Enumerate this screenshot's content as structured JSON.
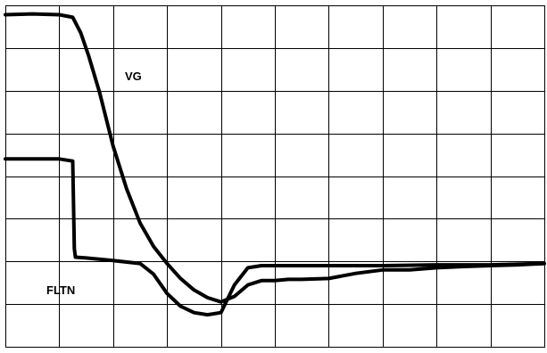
{
  "chart_data": {
    "type": "line",
    "grid": true,
    "divisions": {
      "x": 10,
      "y": 8
    },
    "xlim": [
      0,
      10
    ],
    "ylim": [
      0,
      8
    ],
    "series": [
      {
        "name": "VG",
        "points": [
          [
            0.0,
            7.78
          ],
          [
            0.5,
            7.8
          ],
          [
            1.0,
            7.78
          ],
          [
            1.25,
            7.72
          ],
          [
            1.4,
            7.35
          ],
          [
            1.55,
            6.8
          ],
          [
            1.75,
            5.95
          ],
          [
            2.0,
            4.7
          ],
          [
            2.25,
            3.7
          ],
          [
            2.5,
            2.9
          ],
          [
            2.75,
            2.35
          ],
          [
            3.0,
            1.95
          ],
          [
            3.25,
            1.6
          ],
          [
            3.5,
            1.33
          ],
          [
            3.75,
            1.15
          ],
          [
            4.0,
            1.05
          ],
          [
            4.25,
            1.18
          ],
          [
            4.5,
            1.45
          ],
          [
            4.75,
            1.55
          ],
          [
            5.0,
            1.55
          ],
          [
            5.25,
            1.58
          ],
          [
            5.5,
            1.58
          ],
          [
            6.0,
            1.6
          ],
          [
            6.5,
            1.72
          ],
          [
            7.0,
            1.8
          ],
          [
            7.5,
            1.8
          ],
          [
            8.0,
            1.85
          ],
          [
            8.5,
            1.88
          ],
          [
            9.0,
            1.9
          ],
          [
            9.5,
            1.92
          ],
          [
            10.0,
            1.95
          ]
        ]
      },
      {
        "name": "FLTN",
        "points": [
          [
            0.0,
            4.4
          ],
          [
            0.5,
            4.4
          ],
          [
            1.0,
            4.4
          ],
          [
            1.25,
            4.35
          ],
          [
            1.28,
            2.3
          ],
          [
            1.3,
            2.1
          ],
          [
            1.5,
            2.08
          ],
          [
            2.0,
            2.02
          ],
          [
            2.5,
            1.95
          ],
          [
            2.75,
            1.7
          ],
          [
            3.0,
            1.25
          ],
          [
            3.25,
            0.95
          ],
          [
            3.5,
            0.8
          ],
          [
            3.75,
            0.75
          ],
          [
            4.0,
            0.8
          ],
          [
            4.25,
            1.45
          ],
          [
            4.5,
            1.85
          ],
          [
            4.75,
            1.9
          ],
          [
            5.0,
            1.9
          ],
          [
            6.0,
            1.9
          ],
          [
            7.0,
            1.9
          ],
          [
            8.0,
            1.92
          ],
          [
            9.0,
            1.92
          ],
          [
            10.0,
            1.95
          ]
        ]
      }
    ]
  },
  "labels": {
    "vg": "VG",
    "fltn": "FLTN"
  }
}
